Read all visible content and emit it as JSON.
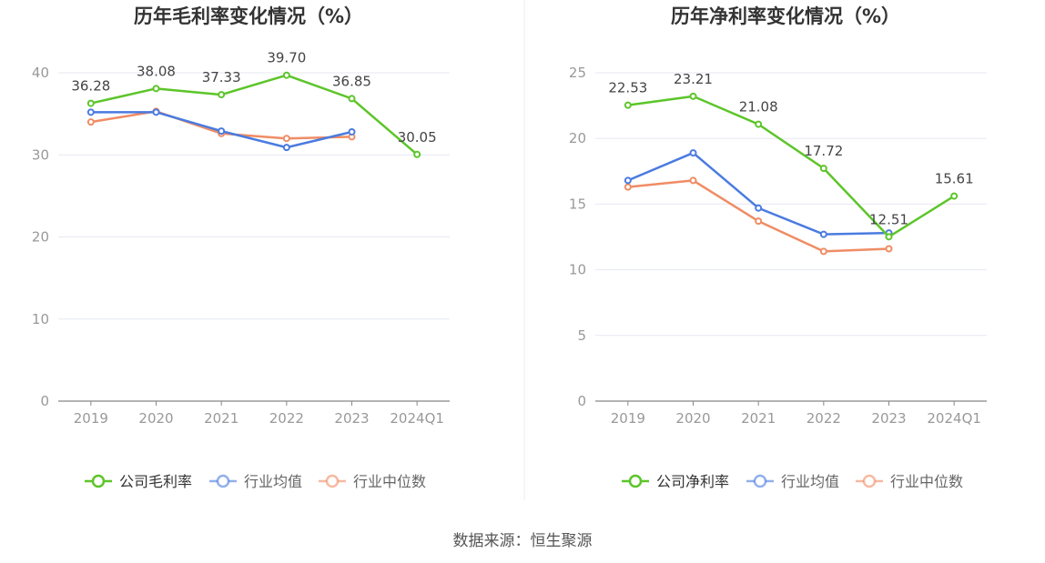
{
  "colors": {
    "company": "#5cc529",
    "industry_avg": "#4a7be0",
    "industry_median": "#f08c64",
    "grid": "#e6e9f2",
    "axis": "#999999",
    "title": "#333333"
  },
  "source_text": "数据来源：恒生聚源",
  "chart_data": [
    {
      "type": "line",
      "title": "历年毛利率变化情况（%）",
      "categories": [
        "2019",
        "2020",
        "2021",
        "2022",
        "2023",
        "2024Q1"
      ],
      "ylim": [
        0,
        40
      ],
      "yticks": [
        "0",
        "10",
        "20",
        "30",
        "40"
      ],
      "grid": true,
      "legend_position": "bottom",
      "series": [
        {
          "name": "公司毛利率",
          "color_key": "company",
          "values": [
            36.28,
            38.08,
            37.33,
            39.7,
            36.85,
            30.05
          ],
          "labels": [
            "36.28",
            "38.08",
            "37.33",
            "39.70",
            "36.85",
            "30.05"
          ]
        },
        {
          "name": "行业均值",
          "color_key": "industry_avg",
          "values": [
            35.2,
            35.2,
            32.9,
            30.9,
            32.8,
            null
          ]
        },
        {
          "name": "行业中位数",
          "color_key": "industry_median",
          "values": [
            34.0,
            35.3,
            32.6,
            32.0,
            32.2,
            null
          ]
        }
      ]
    },
    {
      "type": "line",
      "title": "历年净利率变化情况（%）",
      "categories": [
        "2019",
        "2020",
        "2021",
        "2022",
        "2023",
        "2024Q1"
      ],
      "ylim": [
        0,
        25
      ],
      "yticks": [
        "0",
        "5",
        "10",
        "15",
        "20",
        "25"
      ],
      "grid": true,
      "legend_position": "bottom",
      "series": [
        {
          "name": "公司净利率",
          "color_key": "company",
          "values": [
            22.53,
            23.21,
            21.08,
            17.72,
            12.51,
            15.61
          ],
          "labels": [
            "22.53",
            "23.21",
            "21.08",
            "17.72",
            "12.51",
            "15.61"
          ]
        },
        {
          "name": "行业均值",
          "color_key": "industry_avg",
          "values": [
            16.8,
            18.9,
            14.7,
            12.7,
            12.8,
            null
          ]
        },
        {
          "name": "行业中位数",
          "color_key": "industry_median",
          "values": [
            16.3,
            16.8,
            13.7,
            11.4,
            11.6,
            null
          ]
        }
      ]
    }
  ]
}
